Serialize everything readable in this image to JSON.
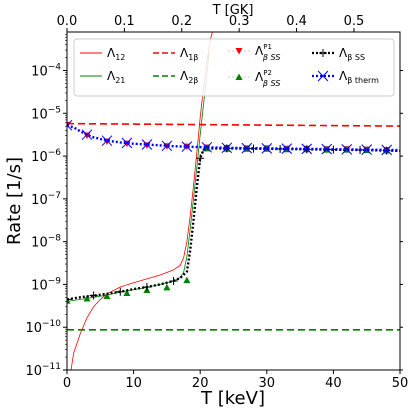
{
  "chart_data": {
    "type": "line",
    "xlabel": "T [keV]",
    "ylabel": "Rate [1/s]",
    "x2label": "T [GK]",
    "xlim": [
      0,
      50
    ],
    "ylim_log10": [
      -11,
      -3.1
    ],
    "yscale": "log",
    "x_ticks": [
      "0",
      "10",
      "20",
      "30",
      "40",
      "50"
    ],
    "x_tick_values": [
      0,
      10,
      20,
      30,
      40,
      50
    ],
    "x2_ticks": [
      "0.0",
      "0.1",
      "0.2",
      "0.3",
      "0.4",
      "0.5"
    ],
    "x2_tick_values_keV": [
      0,
      8.617,
      17.234,
      25.852,
      34.469,
      43.086
    ],
    "y_tick_exponents": [
      -11,
      -10,
      -9,
      -8,
      -7,
      -6,
      -5,
      -4
    ],
    "y_tick_labels": [
      "10",
      "10",
      "10",
      "10",
      "10",
      "10",
      "10",
      "10"
    ],
    "y_tick_sup": [
      "−11",
      "−10",
      "−9",
      "−8",
      "−7",
      "−6",
      "−5",
      "−4"
    ],
    "series": [
      {
        "name": "Λ",
        "sub": "12",
        "color": "#ff0000",
        "style": "solid",
        "width": 0.8,
        "x": [
          0.6,
          1,
          2,
          3,
          4,
          5,
          6,
          8,
          10,
          12,
          14,
          16,
          17,
          17.5,
          18,
          18.5,
          19,
          19.5,
          20,
          20.5,
          21,
          21.5,
          22
        ],
        "y": [
          -11,
          -10.6,
          -10.15,
          -9.78,
          -9.52,
          -9.35,
          -9.22,
          -9.06,
          -8.96,
          -8.87,
          -8.78,
          -8.66,
          -8.55,
          -8.38,
          -8.0,
          -7.4,
          -6.7,
          -5.9,
          -5.1,
          -4.4,
          -3.8,
          -3.3,
          -3.0
        ]
      },
      {
        "name": "Λ",
        "sub": "21",
        "color": "#008000",
        "style": "solid",
        "width": 0.8,
        "x": [
          0,
          2,
          4,
          6,
          8,
          10,
          12,
          14,
          16,
          17,
          17.5,
          18,
          18.5,
          19,
          19.5,
          20,
          20.5,
          21,
          21.3
        ],
        "y": [
          -9.4,
          -9.35,
          -9.3,
          -9.25,
          -9.18,
          -9.12,
          -9.07,
          -9.0,
          -8.92,
          -8.84,
          -8.72,
          -8.35,
          -7.7,
          -7.0,
          -6.25,
          -5.5,
          -4.8,
          -4.1,
          -3.6
        ]
      },
      {
        "name": "Λ",
        "sub": "1β",
        "color": "#ff0000",
        "style": "dashed",
        "width": 1.6,
        "x": [
          0,
          50
        ],
        "y": [
          -5.24,
          -5.3
        ]
      },
      {
        "name": "Λ",
        "sub": "2β",
        "color": "#008000",
        "style": "dashed",
        "width": 1.6,
        "x": [
          0,
          50
        ],
        "y": [
          -10.06,
          -10.06
        ]
      },
      {
        "name": "Λ",
        "sub": "β SS",
        "sup": "P1",
        "color": "#ff0000",
        "style": "marker-down",
        "x": [
          0,
          3,
          6,
          9,
          12,
          15,
          18,
          21,
          24,
          27,
          30,
          33,
          36,
          39,
          42,
          45,
          48
        ],
        "y": [
          -5.27,
          -5.52,
          -5.66,
          -5.71,
          -5.75,
          -5.77,
          -5.78,
          -5.8,
          -5.81,
          -5.82,
          -5.82,
          -5.83,
          -5.83,
          -5.84,
          -5.84,
          -5.85,
          -5.86
        ]
      },
      {
        "name": "Λ",
        "sub": "β SS",
        "sup": "P2",
        "color": "#008000",
        "style": "marker-up",
        "x": [
          0,
          3,
          6,
          9,
          12,
          15,
          18,
          21,
          24,
          27,
          30,
          33,
          36,
          39,
          42,
          45,
          48
        ],
        "y": [
          -9.38,
          -9.33,
          -9.27,
          -9.2,
          -9.13,
          -9.07,
          -8.9,
          -5.82,
          -5.83,
          -5.83,
          -5.83,
          -5.84,
          -5.84,
          -5.85,
          -5.85,
          -5.86,
          -5.87
        ]
      },
      {
        "name": "Λ",
        "sub": "β SS",
        "color": "#000000",
        "style": "dotted-plus",
        "width": 2.4,
        "x": [
          0,
          2,
          4,
          6,
          8,
          10,
          12,
          14,
          16,
          17,
          18,
          18.5,
          19,
          19.5,
          20,
          20.5,
          21,
          25,
          30,
          35,
          40,
          45,
          50
        ],
        "y": [
          -9.35,
          -9.3,
          -9.26,
          -9.22,
          -9.17,
          -9.11,
          -9.06,
          -9.0,
          -8.92,
          -8.85,
          -8.7,
          -8.2,
          -7.5,
          -6.7,
          -6.05,
          -5.85,
          -5.82,
          -5.82,
          -5.83,
          -5.84,
          -5.85,
          -5.86,
          -5.88
        ]
      },
      {
        "name": "Λ",
        "sub": "β therm",
        "color": "#0000ff",
        "style": "dotted-x",
        "width": 2.4,
        "x": [
          0,
          1,
          2,
          3,
          4,
          5,
          6,
          8,
          10,
          12,
          14,
          16,
          18,
          20,
          22,
          25,
          30,
          35,
          40,
          45,
          50
        ],
        "y": [
          -5.28,
          -5.33,
          -5.42,
          -5.5,
          -5.56,
          -5.6,
          -5.64,
          -5.68,
          -5.71,
          -5.73,
          -5.75,
          -5.77,
          -5.78,
          -5.79,
          -5.8,
          -5.81,
          -5.82,
          -5.83,
          -5.84,
          -5.85,
          -5.86
        ]
      }
    ],
    "marker_x_plus": [
      0,
      4,
      8,
      12,
      16,
      20,
      24,
      28,
      32,
      36,
      40,
      44,
      48
    ],
    "marker_x_x": [
      0,
      3,
      6,
      9,
      12,
      15,
      18,
      21,
      24,
      27,
      30,
      33,
      36,
      39,
      42,
      45,
      48
    ],
    "legend_placement": "top",
    "legend_columns": 4
  }
}
